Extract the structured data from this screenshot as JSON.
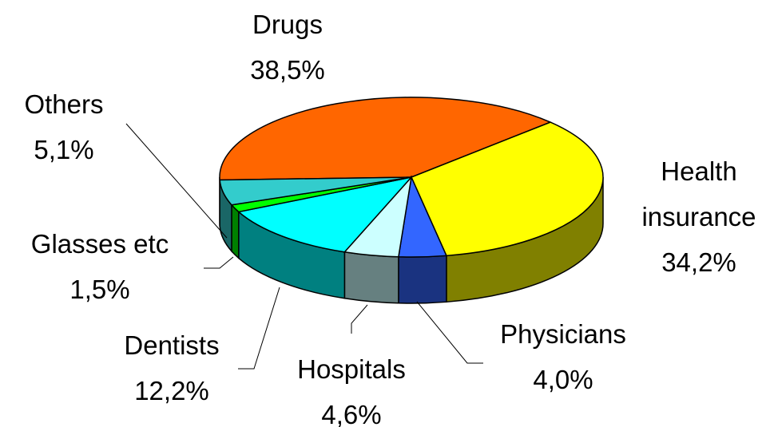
{
  "chart_data": {
    "type": "pie",
    "categories": [
      "Drugs",
      "Health insurance",
      "Physicians",
      "Hospitals",
      "Dentists",
      "Glasses etc",
      "Others"
    ],
    "values": [
      38.5,
      34.2,
      4.0,
      4.6,
      12.2,
      1.5,
      5.1
    ],
    "value_labels": [
      "38,5%",
      "34,2%",
      "4,0%",
      "4,6%",
      "12,2%",
      "1,5%",
      "5,1%"
    ],
    "colors": [
      "#ff6600",
      "#ffff00",
      "#3366ff",
      "#ccffff",
      "#00ffff",
      "#00ff00",
      "#33cccc"
    ]
  }
}
